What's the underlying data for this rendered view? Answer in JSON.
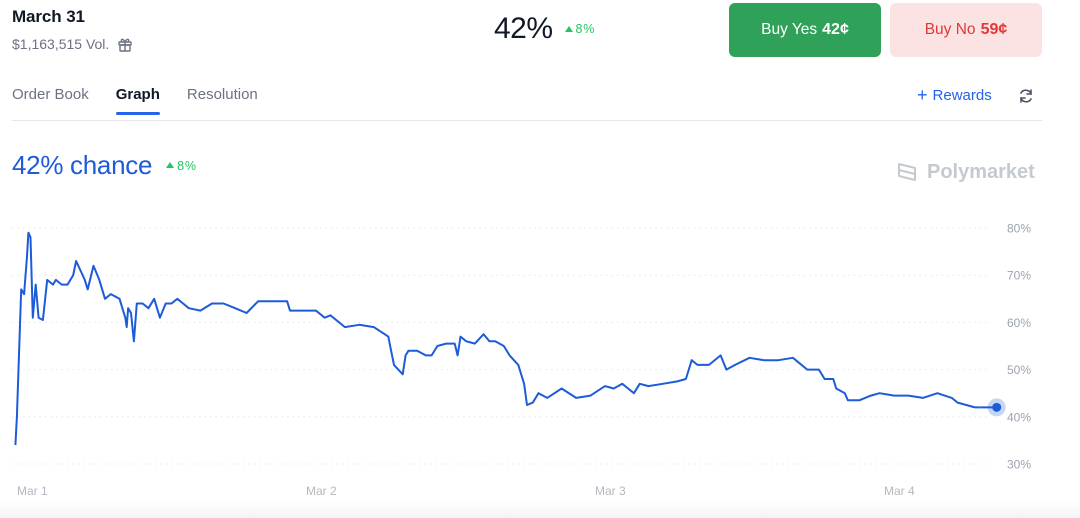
{
  "market": {
    "title": "March 31",
    "volume": "$1,163,515 Vol.",
    "gift_icon": "gift-icon"
  },
  "headline": {
    "percent": "42%",
    "delta": "8%"
  },
  "buttons": {
    "yes_label": "Buy Yes",
    "yes_price": "42¢",
    "no_label": "Buy No",
    "no_price": "59¢"
  },
  "tabs": [
    {
      "label": "Order Book",
      "active": false
    },
    {
      "label": "Graph",
      "active": true
    },
    {
      "label": "Resolution",
      "active": false
    }
  ],
  "rewards": {
    "label": "Rewards",
    "icon": "plus-icon"
  },
  "refresh_icon": "refresh-icon",
  "chance": {
    "text": "42% chance",
    "delta": "8%"
  },
  "brand": {
    "name": "Polymarket",
    "icon": "polymarket-logo-icon"
  },
  "colors": {
    "accent": "#1d5bd8",
    "line": "#1d5bd8",
    "yes_button": "#30a159",
    "no_button_bg": "#fbe3e3",
    "no_button_text": "#e23838",
    "up": "#22c55e"
  },
  "chart_data": {
    "type": "line",
    "title": "",
    "xlabel": "",
    "ylabel": "",
    "ylim": [
      30,
      80
    ],
    "yticks": [
      "80%",
      "70%",
      "60%",
      "50%",
      "40%",
      "30%"
    ],
    "ytick_values": [
      80,
      70,
      60,
      50,
      40,
      30
    ],
    "xticks": [
      "Mar 1",
      "Mar 2",
      "Mar 3",
      "Mar 4"
    ],
    "xtick_values": [
      0,
      1,
      2,
      3
    ],
    "xlim": [
      0,
      3.33
    ],
    "grid": true,
    "last_point_marker": true,
    "series": [
      {
        "values": [
          [
            -0.04,
            34
          ],
          [
            -0.035,
            40
          ],
          [
            -0.02,
            67
          ],
          [
            -0.01,
            66
          ],
          [
            0.0,
            74
          ],
          [
            0.005,
            79
          ],
          [
            0.012,
            78
          ],
          [
            0.02,
            61
          ],
          [
            0.03,
            68
          ],
          [
            0.04,
            61
          ],
          [
            0.055,
            60.5
          ],
          [
            0.07,
            69
          ],
          [
            0.09,
            68
          ],
          [
            0.1,
            69
          ],
          [
            0.12,
            68
          ],
          [
            0.14,
            68
          ],
          [
            0.16,
            70
          ],
          [
            0.17,
            73
          ],
          [
            0.185,
            71
          ],
          [
            0.2,
            69
          ],
          [
            0.21,
            67
          ],
          [
            0.23,
            72
          ],
          [
            0.25,
            69
          ],
          [
            0.27,
            65
          ],
          [
            0.29,
            66
          ],
          [
            0.32,
            65
          ],
          [
            0.34,
            61
          ],
          [
            0.345,
            59
          ],
          [
            0.35,
            63
          ],
          [
            0.36,
            62
          ],
          [
            0.37,
            56
          ],
          [
            0.38,
            64
          ],
          [
            0.4,
            64
          ],
          [
            0.42,
            63
          ],
          [
            0.44,
            65
          ],
          [
            0.46,
            61
          ],
          [
            0.48,
            64
          ],
          [
            0.5,
            64
          ],
          [
            0.52,
            65
          ],
          [
            0.54,
            64
          ],
          [
            0.56,
            63
          ],
          [
            0.6,
            62.5
          ],
          [
            0.64,
            64
          ],
          [
            0.68,
            64
          ],
          [
            0.72,
            63
          ],
          [
            0.76,
            62
          ],
          [
            0.8,
            64.5
          ],
          [
            0.9,
            64.5
          ],
          [
            0.91,
            62.5
          ],
          [
            1.0,
            62.5
          ],
          [
            1.03,
            61
          ],
          [
            1.05,
            61.5
          ],
          [
            1.08,
            60
          ],
          [
            1.1,
            59
          ],
          [
            1.15,
            59.5
          ],
          [
            1.2,
            59
          ],
          [
            1.25,
            57
          ],
          [
            1.26,
            54
          ],
          [
            1.27,
            51
          ],
          [
            1.3,
            49
          ],
          [
            1.31,
            53
          ],
          [
            1.32,
            54
          ],
          [
            1.35,
            54
          ],
          [
            1.38,
            53
          ],
          [
            1.4,
            53
          ],
          [
            1.42,
            55
          ],
          [
            1.45,
            55.5
          ],
          [
            1.48,
            55.5
          ],
          [
            1.49,
            53
          ],
          [
            1.5,
            57
          ],
          [
            1.52,
            56
          ],
          [
            1.55,
            55.5
          ],
          [
            1.58,
            57.5
          ],
          [
            1.6,
            56
          ],
          [
            1.62,
            56
          ],
          [
            1.65,
            55
          ],
          [
            1.67,
            53
          ],
          [
            1.7,
            51
          ],
          [
            1.72,
            47
          ],
          [
            1.73,
            42.5
          ],
          [
            1.75,
            43
          ],
          [
            1.77,
            45
          ],
          [
            1.8,
            44
          ],
          [
            1.85,
            46
          ],
          [
            1.9,
            44
          ],
          [
            1.95,
            44.5
          ],
          [
            2.0,
            46.5
          ],
          [
            2.03,
            46
          ],
          [
            2.06,
            47
          ],
          [
            2.08,
            46
          ],
          [
            2.1,
            45
          ],
          [
            2.12,
            47
          ],
          [
            2.15,
            46.5
          ],
          [
            2.2,
            47
          ],
          [
            2.25,
            47.5
          ],
          [
            2.28,
            48
          ],
          [
            2.3,
            52
          ],
          [
            2.32,
            51
          ],
          [
            2.36,
            51
          ],
          [
            2.4,
            53
          ],
          [
            2.42,
            50
          ],
          [
            2.45,
            51
          ],
          [
            2.5,
            52.5
          ],
          [
            2.55,
            52
          ],
          [
            2.6,
            52
          ],
          [
            2.65,
            52.5
          ],
          [
            2.7,
            50
          ],
          [
            2.74,
            50
          ],
          [
            2.76,
            48
          ],
          [
            2.79,
            48
          ],
          [
            2.8,
            46
          ],
          [
            2.83,
            45
          ],
          [
            2.84,
            43.5
          ],
          [
            2.88,
            43.5
          ],
          [
            2.92,
            44.5
          ],
          [
            2.95,
            45
          ],
          [
            3.0,
            44.5
          ],
          [
            3.05,
            44.5
          ],
          [
            3.1,
            44
          ],
          [
            3.15,
            45
          ],
          [
            3.2,
            44
          ],
          [
            3.22,
            43
          ],
          [
            3.25,
            42.5
          ],
          [
            3.28,
            42
          ],
          [
            3.3,
            42
          ]
        ]
      }
    ]
  }
}
